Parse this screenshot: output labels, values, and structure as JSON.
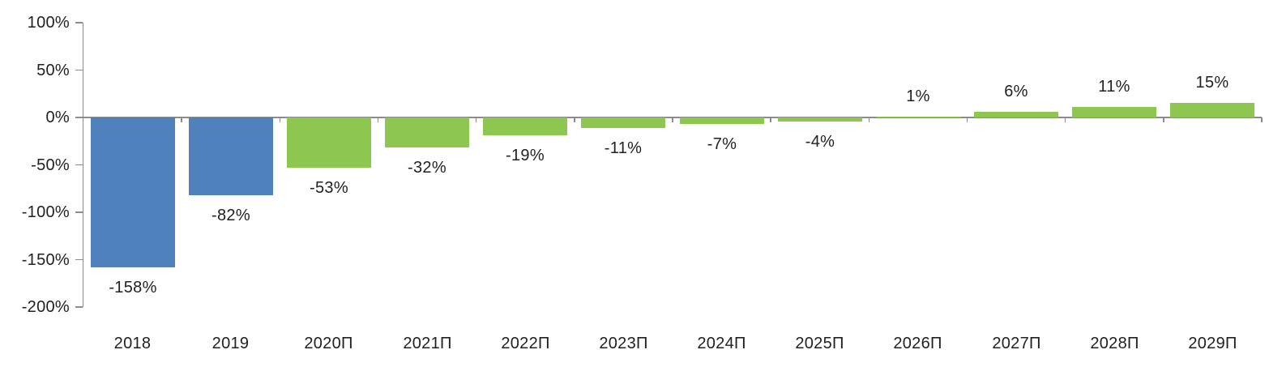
{
  "chart_data": {
    "type": "bar",
    "categories": [
      "2018",
      "2019",
      "2020П",
      "2021П",
      "2022П",
      "2023П",
      "2024П",
      "2025П",
      "2026П",
      "2027П",
      "2028П",
      "2029П"
    ],
    "values": [
      -158,
      -82,
      -53,
      -32,
      -19,
      -11,
      -7,
      -4,
      1,
      6,
      11,
      15
    ],
    "value_labels": [
      "-158%",
      "-82%",
      "-53%",
      "-32%",
      "-19%",
      "-11%",
      "-7%",
      "-4%",
      "1%",
      "6%",
      "11%",
      "15%"
    ],
    "bar_color_keys": [
      "actual",
      "actual",
      "forecast",
      "forecast",
      "forecast",
      "forecast",
      "forecast",
      "forecast",
      "forecast",
      "forecast",
      "forecast",
      "forecast"
    ],
    "colors": {
      "actual": "#4f81bc",
      "forecast": "#8dc74f",
      "axis": "#8c8c8c",
      "text": "#212121"
    },
    "xlabel": "",
    "ylabel": "",
    "title": "",
    "ylim": [
      -200,
      100
    ],
    "y_ticks": [
      {
        "value": 100,
        "label": "100%"
      },
      {
        "value": 50,
        "label": "50%"
      },
      {
        "value": 0,
        "label": "0%"
      },
      {
        "value": -50,
        "label": "-50%"
      },
      {
        "value": -100,
        "label": "-100%"
      },
      {
        "value": -150,
        "label": "-150%"
      },
      {
        "value": -200,
        "label": "-200%"
      }
    ],
    "grid": false,
    "legend": false
  }
}
